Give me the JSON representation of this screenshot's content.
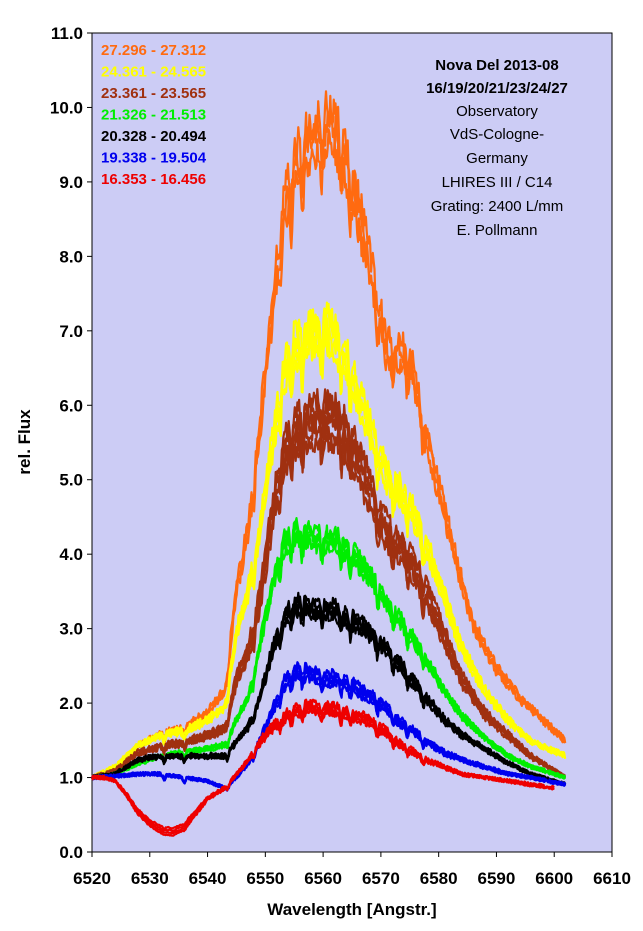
{
  "chart_data": {
    "type": "line",
    "xlabel": "Wavelength [Angstr.]",
    "ylabel": "rel. Flux",
    "xlim": [
      6520,
      6610
    ],
    "ylim": [
      0,
      11
    ],
    "x_ticks": [
      "6520",
      "6530",
      "6540",
      "6550",
      "6560",
      "6570",
      "6580",
      "6590",
      "6600",
      "6610"
    ],
    "y_ticks": [
      "0.0",
      "1.0",
      "2.0",
      "3.0",
      "4.0",
      "5.0",
      "6.0",
      "7.0",
      "8.0",
      "9.0",
      "10.0",
      "11.0"
    ],
    "plot_background": "#ccccf5",
    "info": {
      "title": "Nova Del 2013-08",
      "dates": "16/19/20/21/23/24/27",
      "lines": [
        "Observatory",
        "VdS-Cologne-",
        "Germany",
        "LHIRES III / C14",
        "Grating: 2400 L/mm",
        "E. Pollmann"
      ]
    },
    "series": [
      {
        "name": "27.296 - 27.312",
        "color": "#ff6a10",
        "copies": 3,
        "spread": 0.55,
        "points": [
          [
            6520,
            1.0
          ],
          [
            6524,
            1.1
          ],
          [
            6528,
            1.45
          ],
          [
            6532,
            1.6
          ],
          [
            6536,
            1.7
          ],
          [
            6540,
            1.9
          ],
          [
            6543,
            2.2
          ],
          [
            6545,
            3.6
          ],
          [
            6547,
            4.4
          ],
          [
            6549,
            5.8
          ],
          [
            6551,
            7.3
          ],
          [
            6553,
            8.8
          ],
          [
            6555,
            9.4
          ],
          [
            6557,
            9.7
          ],
          [
            6559,
            9.9
          ],
          [
            6561,
            10.0
          ],
          [
            6563,
            9.8
          ],
          [
            6565,
            9.2
          ],
          [
            6567,
            8.5
          ],
          [
            6569,
            7.7
          ],
          [
            6571,
            6.9
          ],
          [
            6573,
            6.9
          ],
          [
            6575,
            6.8
          ],
          [
            6577,
            6.0
          ],
          [
            6580,
            5.0
          ],
          [
            6583,
            4.0
          ],
          [
            6586,
            3.1
          ],
          [
            6590,
            2.5
          ],
          [
            6594,
            2.1
          ],
          [
            6598,
            1.8
          ],
          [
            6602,
            1.5
          ]
        ]
      },
      {
        "name": "24.361 - 24.565",
        "color": "#ffff00",
        "copies": 4,
        "spread": 0.5,
        "points": [
          [
            6520,
            1.0
          ],
          [
            6524,
            1.15
          ],
          [
            6528,
            1.45
          ],
          [
            6532,
            1.6
          ],
          [
            6536,
            1.65
          ],
          [
            6540,
            1.8
          ],
          [
            6543,
            2.0
          ],
          [
            6545,
            3.0
          ],
          [
            6547,
            3.6
          ],
          [
            6549,
            4.4
          ],
          [
            6551,
            5.5
          ],
          [
            6553,
            6.6
          ],
          [
            6555,
            7.0
          ],
          [
            6557,
            7.1
          ],
          [
            6559,
            7.2
          ],
          [
            6561,
            7.2
          ],
          [
            6563,
            7.0
          ],
          [
            6565,
            6.6
          ],
          [
            6567,
            6.1
          ],
          [
            6569,
            5.7
          ],
          [
            6571,
            5.2
          ],
          [
            6573,
            5.0
          ],
          [
            6575,
            4.8
          ],
          [
            6578,
            4.2
          ],
          [
            6581,
            3.5
          ],
          [
            6584,
            2.8
          ],
          [
            6588,
            2.2
          ],
          [
            6592,
            1.8
          ],
          [
            6596,
            1.5
          ],
          [
            6602,
            1.3
          ]
        ]
      },
      {
        "name": "23.361 - 23.565",
        "color": "#a03010",
        "copies": 5,
        "spread": 0.7,
        "points": [
          [
            6520,
            1.0
          ],
          [
            6524,
            1.1
          ],
          [
            6528,
            1.35
          ],
          [
            6532,
            1.45
          ],
          [
            6536,
            1.5
          ],
          [
            6540,
            1.6
          ],
          [
            6543,
            1.7
          ],
          [
            6545,
            2.4
          ],
          [
            6547,
            2.8
          ],
          [
            6549,
            3.5
          ],
          [
            6551,
            4.6
          ],
          [
            6553,
            5.6
          ],
          [
            6555,
            5.9
          ],
          [
            6557,
            6.0
          ],
          [
            6559,
            6.1
          ],
          [
            6561,
            6.1
          ],
          [
            6563,
            6.0
          ],
          [
            6565,
            5.7
          ],
          [
            6567,
            5.3
          ],
          [
            6569,
            4.9
          ],
          [
            6571,
            4.5
          ],
          [
            6573,
            4.3
          ],
          [
            6575,
            4.1
          ],
          [
            6578,
            3.6
          ],
          [
            6581,
            3.0
          ],
          [
            6584,
            2.4
          ],
          [
            6588,
            1.9
          ],
          [
            6592,
            1.6
          ],
          [
            6596,
            1.3
          ],
          [
            6602,
            1.0
          ]
        ]
      },
      {
        "name": "21.326 - 21.513",
        "color": "#00ee00",
        "copies": 4,
        "spread": 0.25,
        "points": [
          [
            6520,
            1.0
          ],
          [
            6524,
            1.05
          ],
          [
            6528,
            1.2
          ],
          [
            6532,
            1.3
          ],
          [
            6536,
            1.35
          ],
          [
            6540,
            1.4
          ],
          [
            6543,
            1.45
          ],
          [
            6545,
            1.8
          ],
          [
            6547,
            2.1
          ],
          [
            6549,
            2.8
          ],
          [
            6551,
            3.6
          ],
          [
            6553,
            4.2
          ],
          [
            6555,
            4.4
          ],
          [
            6557,
            4.35
          ],
          [
            6559,
            4.3
          ],
          [
            6561,
            4.3
          ],
          [
            6563,
            4.25
          ],
          [
            6565,
            4.1
          ],
          [
            6567,
            3.9
          ],
          [
            6569,
            3.7
          ],
          [
            6571,
            3.4
          ],
          [
            6573,
            3.2
          ],
          [
            6575,
            3.0
          ],
          [
            6578,
            2.6
          ],
          [
            6581,
            2.2
          ],
          [
            6584,
            1.85
          ],
          [
            6588,
            1.55
          ],
          [
            6592,
            1.3
          ],
          [
            6596,
            1.15
          ],
          [
            6602,
            1.0
          ]
        ]
      },
      {
        "name": "20.328 - 20.494",
        "color": "#000000",
        "copies": 4,
        "spread": 0.25,
        "points": [
          [
            6520,
            1.0
          ],
          [
            6524,
            1.05
          ],
          [
            6528,
            1.25
          ],
          [
            6532,
            1.3
          ],
          [
            6536,
            1.3
          ],
          [
            6540,
            1.3
          ],
          [
            6543,
            1.3
          ],
          [
            6545,
            1.5
          ],
          [
            6547,
            1.7
          ],
          [
            6549,
            2.1
          ],
          [
            6551,
            2.7
          ],
          [
            6553,
            3.2
          ],
          [
            6555,
            3.4
          ],
          [
            6557,
            3.4
          ],
          [
            6559,
            3.35
          ],
          [
            6561,
            3.35
          ],
          [
            6563,
            3.3
          ],
          [
            6565,
            3.2
          ],
          [
            6567,
            3.1
          ],
          [
            6569,
            2.95
          ],
          [
            6571,
            2.8
          ],
          [
            6573,
            2.6
          ],
          [
            6575,
            2.4
          ],
          [
            6578,
            2.1
          ],
          [
            6581,
            1.8
          ],
          [
            6584,
            1.6
          ],
          [
            6588,
            1.4
          ],
          [
            6592,
            1.2
          ],
          [
            6596,
            1.05
          ],
          [
            6602,
            0.9
          ]
        ]
      },
      {
        "name": "19.338 - 19.504",
        "color": "#0000ee",
        "copies": 4,
        "spread": 0.25,
        "points": [
          [
            6520,
            1.0
          ],
          [
            6524,
            1.02
          ],
          [
            6528,
            1.05
          ],
          [
            6532,
            1.05
          ],
          [
            6536,
            1.0
          ],
          [
            6540,
            0.95
          ],
          [
            6543,
            0.85
          ],
          [
            6545,
            1.0
          ],
          [
            6547,
            1.2
          ],
          [
            6549,
            1.5
          ],
          [
            6551,
            1.9
          ],
          [
            6553,
            2.3
          ],
          [
            6555,
            2.5
          ],
          [
            6557,
            2.5
          ],
          [
            6559,
            2.45
          ],
          [
            6561,
            2.4
          ],
          [
            6563,
            2.4
          ],
          [
            6565,
            2.3
          ],
          [
            6567,
            2.2
          ],
          [
            6569,
            2.1
          ],
          [
            6571,
            2.0
          ],
          [
            6573,
            1.8
          ],
          [
            6575,
            1.7
          ],
          [
            6578,
            1.5
          ],
          [
            6581,
            1.35
          ],
          [
            6584,
            1.25
          ],
          [
            6588,
            1.15
          ],
          [
            6592,
            1.05
          ],
          [
            6596,
            1.0
          ],
          [
            6602,
            0.9
          ]
        ]
      },
      {
        "name": "16.353 - 16.456",
        "color": "#ee0000",
        "copies": 4,
        "spread": 0.25,
        "points": [
          [
            6520,
            1.0
          ],
          [
            6522,
            1.0
          ],
          [
            6524,
            0.95
          ],
          [
            6526,
            0.75
          ],
          [
            6528,
            0.5
          ],
          [
            6530,
            0.35
          ],
          [
            6532,
            0.25
          ],
          [
            6534,
            0.22
          ],
          [
            6536,
            0.3
          ],
          [
            6538,
            0.5
          ],
          [
            6540,
            0.7
          ],
          [
            6543,
            0.85
          ],
          [
            6545,
            1.05
          ],
          [
            6547,
            1.25
          ],
          [
            6549,
            1.5
          ],
          [
            6551,
            1.7
          ],
          [
            6553,
            1.85
          ],
          [
            6555,
            1.95
          ],
          [
            6557,
            2.0
          ],
          [
            6559,
            2.0
          ],
          [
            6561,
            2.0
          ],
          [
            6563,
            1.95
          ],
          [
            6565,
            1.9
          ],
          [
            6567,
            1.85
          ],
          [
            6569,
            1.75
          ],
          [
            6571,
            1.65
          ],
          [
            6573,
            1.5
          ],
          [
            6575,
            1.4
          ],
          [
            6578,
            1.25
          ],
          [
            6581,
            1.15
          ],
          [
            6584,
            1.05
          ],
          [
            6588,
            1.0
          ],
          [
            6592,
            0.95
          ],
          [
            6596,
            0.9
          ],
          [
            6600,
            0.85
          ]
        ]
      }
    ]
  }
}
